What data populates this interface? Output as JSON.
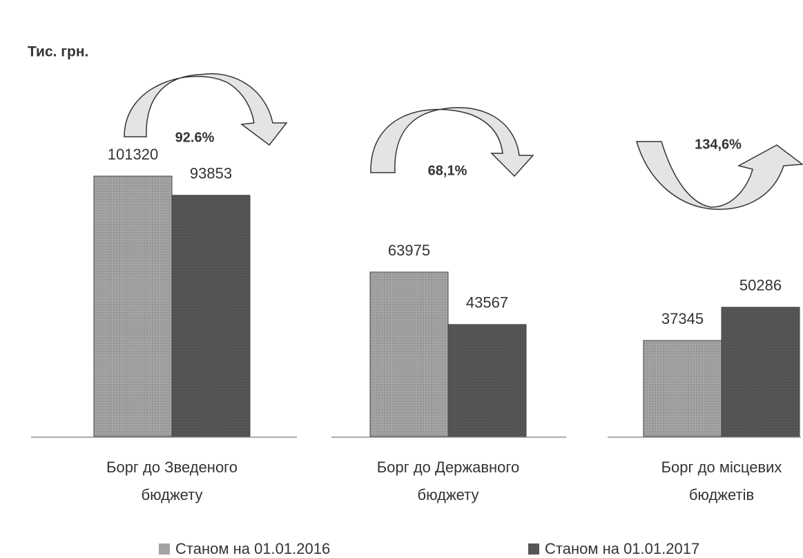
{
  "chart_data": {
    "type": "bar",
    "unit_label": "Тис. грн.",
    "categories": [
      "Борг до Зведеного бюджету",
      "Борг до Державного бюджету",
      "Борг до місцевих бюджетів"
    ],
    "series": [
      {
        "name": "Станом на 01.01.2016",
        "color": "#a3a3a3",
        "values": [
          101320,
          63975,
          37345
        ]
      },
      {
        "name": "Станом на 01.01.2017",
        "color": "#565656",
        "values": [
          93853,
          43567,
          50286
        ]
      }
    ],
    "annotations": [
      "92.6%",
      "68,1%",
      "134,6%"
    ]
  }
}
